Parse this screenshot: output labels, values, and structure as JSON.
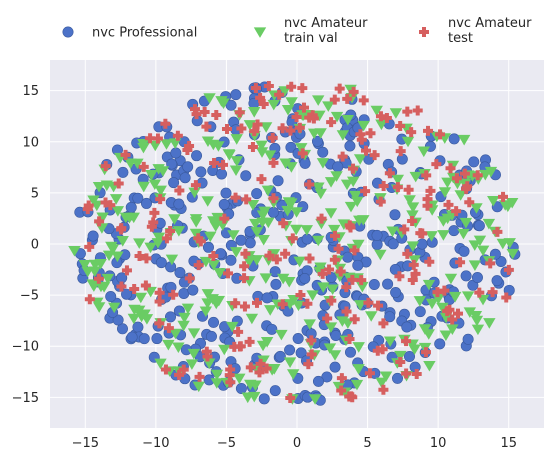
{
  "chart_data": {
    "type": "scatter",
    "title": "",
    "xlabel": "",
    "ylabel": "",
    "xlim": [
      -17.5,
      17.5
    ],
    "ylim": [
      -18,
      18
    ],
    "xticks": [
      -15,
      -10,
      -5,
      0,
      5,
      10,
      15
    ],
    "yticks": [
      -15,
      -10,
      -5,
      0,
      5,
      10,
      15
    ],
    "grid": true,
    "background": "#eaeaf2",
    "legend_position": "top",
    "series": [
      {
        "name": "nvc Professional",
        "marker": "circle",
        "color": "#4c72c8",
        "count": 420,
        "seed": 11
      },
      {
        "name": "nvc Amateur\ntrain val",
        "marker": "triangle-down",
        "color": "#6acc64",
        "count": 340,
        "seed": 23
      },
      {
        "name": "nvc Amateur\ntest",
        "marker": "plus",
        "color": "#d65f5f",
        "count": 220,
        "seed": 37
      }
    ]
  }
}
